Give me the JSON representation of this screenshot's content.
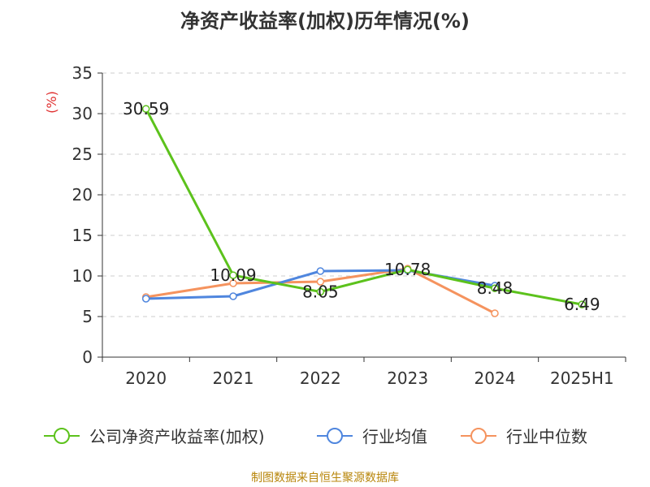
{
  "title": "净资产收益率(加权)历年情况(%)",
  "source_note": "制图数据来自恒生聚源数据库",
  "chart_data": {
    "type": "line",
    "title": "净资产收益率(加权)历年情况(%)",
    "ylabel": "(%)",
    "ylim": [
      0,
      35
    ],
    "yticks": [
      "0",
      "5",
      "10",
      "15",
      "20",
      "25",
      "30",
      "35"
    ],
    "categories": [
      "2020",
      "2021",
      "2022",
      "2023",
      "2024",
      "2025H1"
    ],
    "grid": true,
    "legend_position": "bottom",
    "series": [
      {
        "name": "公司净资产收益率(加权)",
        "color": "#5cc21c",
        "values": [
          30.59,
          10.09,
          8.05,
          10.78,
          8.48,
          6.49
        ],
        "labels": [
          "30.59",
          "10.09",
          "8.05",
          "10.78",
          "8.48",
          "6.49"
        ]
      },
      {
        "name": "行业均值",
        "color": "#4f86de",
        "values": [
          7.2,
          7.5,
          10.6,
          10.7,
          8.8,
          null
        ]
      },
      {
        "name": "行业中位数",
        "color": "#f5935e",
        "values": [
          7.4,
          9.1,
          9.3,
          10.9,
          5.4,
          null
        ]
      }
    ]
  }
}
